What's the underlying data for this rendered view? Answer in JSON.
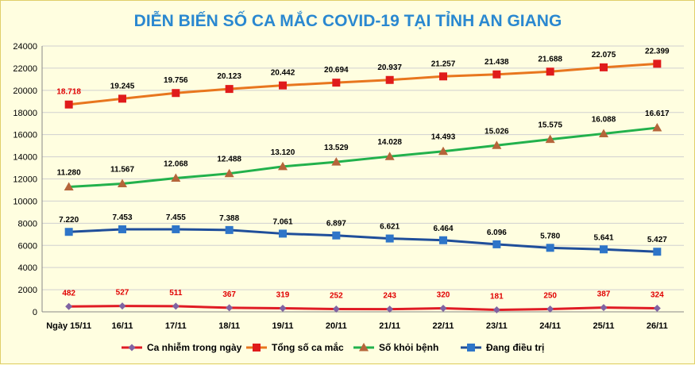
{
  "chart_data": {
    "type": "line",
    "title": "DIỄN BIẾN SỐ CA MẮC COVID-19 TẠI TỈNH AN GIANG",
    "categories": [
      "Ngày 15/11",
      "16/11",
      "17/11",
      "18/11",
      "19/11",
      "20/11",
      "21/11",
      "22/11",
      "23/11",
      "24/11",
      "25/11",
      "26/11"
    ],
    "ylim": [
      0,
      24000
    ],
    "yticks": [
      0,
      2000,
      4000,
      6000,
      8000,
      10000,
      12000,
      14000,
      16000,
      18000,
      20000,
      22000,
      24000
    ],
    "grid": true,
    "legend_position": "bottom",
    "series": [
      {
        "name": "Ca nhiễm trong ngày",
        "color": "#8064a2",
        "line_color": "#e01b24",
        "marker": "diamond",
        "values": [
          482,
          527,
          511,
          367,
          319,
          252,
          243,
          320,
          181,
          250,
          387,
          324
        ],
        "labels": [
          "482",
          "527",
          "511",
          "367",
          "319",
          "252",
          "243",
          "320",
          "181",
          "250",
          "387",
          "324"
        ],
        "label_color": "#e00000"
      },
      {
        "name": "Tổng số ca mắc",
        "color": "#e8761e",
        "marker_color": "#e01b1b",
        "marker": "square",
        "values": [
          18718,
          19245,
          19756,
          20123,
          20442,
          20694,
          20937,
          21257,
          21438,
          21688,
          22075,
          22399
        ],
        "labels": [
          "18.718",
          "19.245",
          "19.756",
          "20.123",
          "20.442",
          "20.694",
          "20.937",
          "21.257",
          "21.438",
          "21.688",
          "22.075",
          "22.399"
        ],
        "label_color": "#000000",
        "first_label_color": "#e00000"
      },
      {
        "name": "Số khỏi bệnh",
        "color": "#22b14c",
        "marker_color": "#b5653a",
        "marker": "triangle",
        "values": [
          11280,
          11567,
          12068,
          12488,
          13120,
          13529,
          14028,
          14493,
          15026,
          15575,
          16088,
          16617
        ],
        "labels": [
          "11.280",
          "11.567",
          "12.068",
          "12.488",
          "13.120",
          "13.529",
          "14.028",
          "14.493",
          "15.026",
          "15.575",
          "16.088",
          "16.617"
        ],
        "label_color": "#000000"
      },
      {
        "name": "Đang điều trị",
        "color": "#1f4e9a",
        "marker_color": "#2e75c8",
        "marker": "square",
        "values": [
          7220,
          7453,
          7455,
          7388,
          7061,
          6897,
          6621,
          6464,
          6096,
          5780,
          5641,
          5427
        ],
        "labels": [
          "7.220",
          "7.453",
          "7.455",
          "7.388",
          "7.061",
          "6.897",
          "6.621",
          "6.464",
          "6.096",
          "5.780",
          "5.641",
          "5.427"
        ],
        "label_color": "#000000"
      }
    ]
  }
}
